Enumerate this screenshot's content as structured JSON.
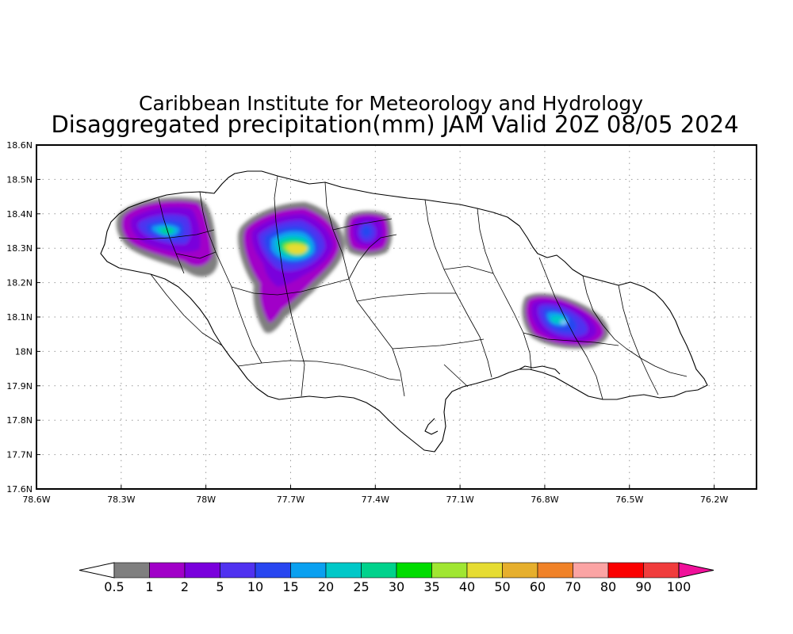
{
  "title_line1": "Caribbean Institute for Meteorology and Hydrology",
  "title_line2": "Disaggregated precipitation(mm) JAM Valid 20Z 08/05 2024",
  "map": {
    "lon_range": [
      -78.6,
      -76.05
    ],
    "lat_range": [
      17.6,
      18.6
    ],
    "x_ticks": [
      {
        "value": -78.6,
        "label": "78.6W"
      },
      {
        "value": -78.3,
        "label": "78.3W"
      },
      {
        "value": -78.0,
        "label": "78W"
      },
      {
        "value": -77.7,
        "label": "77.7W"
      },
      {
        "value": -77.4,
        "label": "77.4W"
      },
      {
        "value": -77.1,
        "label": "77.1W"
      },
      {
        "value": -76.8,
        "label": "76.8W"
      },
      {
        "value": -76.5,
        "label": "76.5W"
      },
      {
        "value": -76.2,
        "label": "76.2W"
      }
    ],
    "y_ticks": [
      {
        "value": 17.6,
        "label": "17.6N"
      },
      {
        "value": 17.7,
        "label": "17.7N"
      },
      {
        "value": 17.8,
        "label": "17.8N"
      },
      {
        "value": 17.9,
        "label": "17.9N"
      },
      {
        "value": 18.0,
        "label": "18N"
      },
      {
        "value": 18.1,
        "label": "18.1N"
      },
      {
        "value": 18.2,
        "label": "18.2N"
      },
      {
        "value": 18.3,
        "label": "18.3N"
      },
      {
        "value": 18.4,
        "label": "18.4N"
      },
      {
        "value": 18.5,
        "label": "18.5N"
      },
      {
        "value": 18.6,
        "label": "18.6N"
      }
    ],
    "grid": "dotted"
  },
  "colorbar": {
    "boundaries": [
      "0.5",
      "1",
      "2",
      "5",
      "10",
      "15",
      "20",
      "25",
      "30",
      "35",
      "40",
      "50",
      "60",
      "70",
      "80",
      "90",
      "100"
    ],
    "below_color": "#ffffff",
    "above_color": "#f0109a",
    "colors": [
      "#7f7f7f",
      "#a100c8",
      "#7a00dc",
      "#5032f0",
      "#2846f0",
      "#0aa0f0",
      "#00c8c8",
      "#00d28c",
      "#00dc00",
      "#a0e632",
      "#e6dc32",
      "#e6af2d",
      "#f08228",
      "#fba4a4",
      "#fa0000",
      "#f03c3c"
    ]
  },
  "chart_data": {
    "type": "heatmap",
    "title": "Caribbean Institute for Meteorology and Hydrology",
    "subtitle": "Disaggregated precipitation(mm) JAM Valid 20Z 08/05 2024",
    "units": "mm",
    "xlim": [
      -78.6,
      -76.05
    ],
    "ylim": [
      17.6,
      18.6
    ],
    "rain_cells": [
      {
        "lon": -78.14,
        "lat": 18.35,
        "peak_mm": 30
      },
      {
        "lon": -77.67,
        "lat": 18.3,
        "peak_mm": 50
      },
      {
        "lon": -77.39,
        "lat": 18.35,
        "peak_mm": 10
      },
      {
        "lon": -76.72,
        "lat": 18.08,
        "peak_mm": 20
      }
    ]
  }
}
